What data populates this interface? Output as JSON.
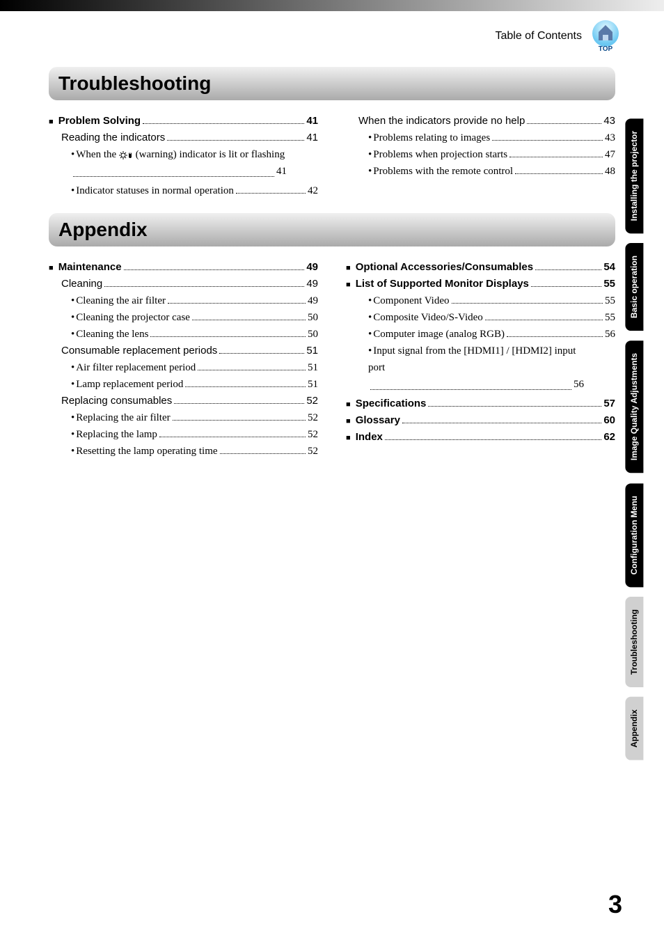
{
  "header": {
    "toc_label": "Table of Contents",
    "top_label": "TOP"
  },
  "sections": [
    {
      "title": "Troubleshooting",
      "left": [
        {
          "lvl": 1,
          "t": "Problem Solving",
          "p": "41"
        },
        {
          "lvl": 2,
          "t": "Reading the indicators",
          "p": "41"
        },
        {
          "lvl": 3,
          "t": "When the ",
          "icon": true,
          "t2": " (warning) indicator is lit or flashing",
          "p": "41",
          "wrap": true
        },
        {
          "lvl": 3,
          "t": "Indicator statuses in normal operation",
          "p": "42"
        }
      ],
      "right": [
        {
          "lvl": 2,
          "t": "When the indicators provide no help",
          "p": "43"
        },
        {
          "lvl": 3,
          "t": "Problems relating to images",
          "p": "43"
        },
        {
          "lvl": 3,
          "t": "Problems when projection starts",
          "p": "47"
        },
        {
          "lvl": 3,
          "t": "Problems with the remote control",
          "p": "48"
        }
      ]
    },
    {
      "title": "Appendix",
      "left": [
        {
          "lvl": 1,
          "t": "Maintenance",
          "p": "49"
        },
        {
          "lvl": 2,
          "t": "Cleaning",
          "p": "49"
        },
        {
          "lvl": 3,
          "t": "Cleaning the air filter",
          "p": "49"
        },
        {
          "lvl": 3,
          "t": "Cleaning the projector case",
          "p": "50"
        },
        {
          "lvl": 3,
          "t": "Cleaning the lens",
          "p": "50"
        },
        {
          "lvl": 2,
          "t": "Consumable replacement periods",
          "p": "51"
        },
        {
          "lvl": 3,
          "t": "Air filter replacement period",
          "p": "51"
        },
        {
          "lvl": 3,
          "t": "Lamp replacement period",
          "p": "51"
        },
        {
          "lvl": 2,
          "t": "Replacing consumables",
          "p": "52"
        },
        {
          "lvl": 3,
          "t": "Replacing the air filter",
          "p": "52"
        },
        {
          "lvl": 3,
          "t": "Replacing the lamp",
          "p": "52"
        },
        {
          "lvl": 3,
          "t": "Resetting the lamp operating time",
          "p": "52"
        }
      ],
      "right": [
        {
          "lvl": 1,
          "t": "Optional Accessories/Consumables",
          "p": "54"
        },
        {
          "lvl": 1,
          "t": "List of Supported Monitor Displays",
          "p": "55"
        },
        {
          "lvl": 3,
          "t": "Component Video",
          "p": "55"
        },
        {
          "lvl": 3,
          "t": "Composite Video/S-Video",
          "p": "55"
        },
        {
          "lvl": 3,
          "t": "Computer image (analog RGB)",
          "p": "56"
        },
        {
          "lvl": 3,
          "t": "Input signal from the [HDMI1] / [HDMI2] input port",
          "p": "56",
          "wrap": true
        },
        {
          "lvl": 1,
          "t": "Specifications",
          "p": "57"
        },
        {
          "lvl": 1,
          "t": "Glossary",
          "p": "60"
        },
        {
          "lvl": 1,
          "t": "Index",
          "p": "62"
        }
      ]
    }
  ],
  "tabs": [
    {
      "label": "Installing the projector",
      "style": "dark"
    },
    {
      "label": "Basic operation",
      "style": "dark"
    },
    {
      "label": "Image Quality Adjustments",
      "style": "dark"
    },
    {
      "label": "Configuration Menu",
      "style": "dark"
    },
    {
      "label": "Troubleshooting",
      "style": "light"
    },
    {
      "label": "Appendix",
      "style": "light"
    }
  ],
  "page_number": "3",
  "colors": {
    "heading_grad_top": "#f0f0f0",
    "heading_grad_bottom": "#aaaaaa",
    "tab_dark_bg": "#000000",
    "tab_light_bg": "#d0d0d0",
    "icon_circle": "#a8e4ff",
    "icon_text": "#0a4a8a"
  }
}
